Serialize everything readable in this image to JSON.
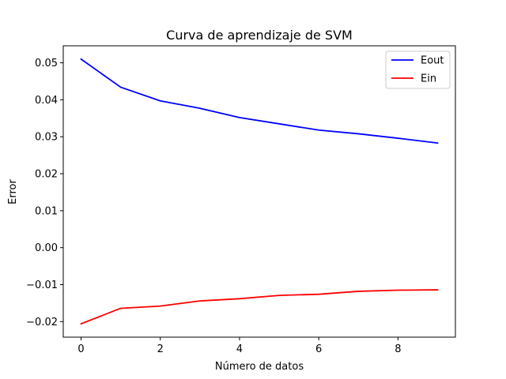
{
  "chart_data": {
    "type": "line",
    "title": "Curva de aprendizaje de SVM",
    "xlabel": "Número de datos",
    "ylabel": "Error",
    "x": [
      0,
      1,
      2,
      3,
      4,
      5,
      6,
      7,
      8,
      9
    ],
    "series": [
      {
        "name": "Eout",
        "color": "#0000ff",
        "values": [
          0.051,
          0.0434,
          0.0397,
          0.0377,
          0.0352,
          0.0335,
          0.0318,
          0.0308,
          0.0296,
          0.0283
        ]
      },
      {
        "name": "Ein",
        "color": "#ff0000",
        "values": [
          -0.0206,
          -0.0164,
          -0.0158,
          -0.0144,
          -0.0138,
          -0.0129,
          -0.0126,
          -0.0118,
          -0.0115,
          -0.0114
        ]
      }
    ],
    "xlim": [
      -0.45,
      9.45
    ],
    "ylim": [
      -0.0242,
      0.0546
    ],
    "xticks": [
      0,
      2,
      4,
      6,
      8
    ],
    "xtick_labels": [
      "0",
      "2",
      "4",
      "6",
      "8"
    ],
    "yticks": [
      -0.02,
      -0.01,
      0.0,
      0.01,
      0.02,
      0.03,
      0.04,
      0.05
    ],
    "ytick_labels": [
      "−0.02",
      "−0.01",
      "0.00",
      "0.01",
      "0.02",
      "0.03",
      "0.04",
      "0.05"
    ],
    "grid": false,
    "legend_position": "top-right"
  }
}
